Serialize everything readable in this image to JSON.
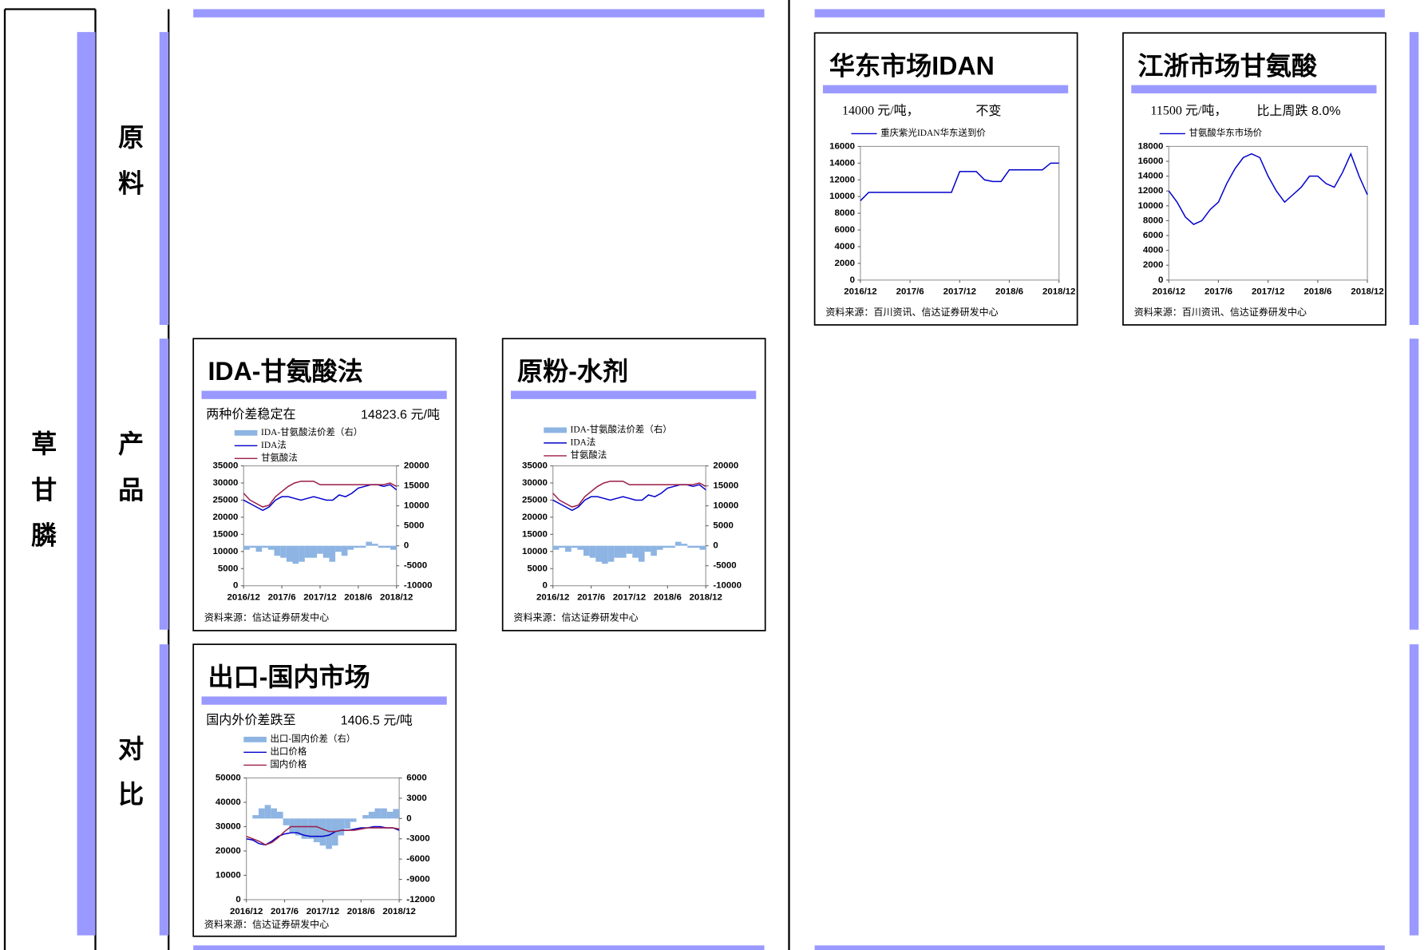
{
  "sidebar": {
    "main": "草甘膦",
    "rows": [
      "原料",
      "产品",
      "对比"
    ]
  },
  "chart_data": [
    {
      "type": "line",
      "title": "华东市场IDAN",
      "subtitle": [
        "14000 元/吨，",
        "不变"
      ],
      "x": [
        "2016/12",
        "2017/1",
        "2017/2",
        "2017/3",
        "2017/4",
        "2017/5",
        "2017/6",
        "2017/7",
        "2017/8",
        "2017/9",
        "2017/10",
        "2017/11",
        "2017/12",
        "2018/1",
        "2018/2",
        "2018/3",
        "2018/4",
        "2018/5",
        "2018/6",
        "2018/7",
        "2018/8",
        "2018/9",
        "2018/10",
        "2018/11",
        "2018/12"
      ],
      "xticks": [
        "2016/12",
        "2017/6",
        "2017/12",
        "2018/6",
        "2018/12"
      ],
      "ylim": [
        0,
        16000
      ],
      "yticks": [
        0,
        2000,
        4000,
        6000,
        8000,
        10000,
        12000,
        14000,
        16000
      ],
      "series": [
        {
          "name": "重庆紫光IDAN华东送到价",
          "color": "#0000cc",
          "values": [
            9500,
            10500,
            10500,
            10500,
            10500,
            10500,
            10500,
            10500,
            10500,
            10500,
            10500,
            10500,
            13000,
            13000,
            13000,
            12000,
            11800,
            11800,
            13200,
            13200,
            13200,
            13200,
            13200,
            14000,
            14000
          ]
        }
      ],
      "source": "资料来源：百川资讯、信达证券研发中心"
    },
    {
      "type": "line",
      "title": "江浙市场甘氨酸",
      "subtitle": [
        "11500 元/吨，",
        "比上周跌 8.0%"
      ],
      "x": [
        "2016/12",
        "2017/1",
        "2017/2",
        "2017/3",
        "2017/4",
        "2017/5",
        "2017/6",
        "2017/7",
        "2017/8",
        "2017/9",
        "2017/10",
        "2017/11",
        "2017/12",
        "2018/1",
        "2018/2",
        "2018/3",
        "2018/4",
        "2018/5",
        "2018/6",
        "2018/7",
        "2018/8",
        "2018/9",
        "2018/10",
        "2018/11",
        "2018/12"
      ],
      "xticks": [
        "2016/12",
        "2017/6",
        "2017/12",
        "2018/6",
        "2018/12"
      ],
      "ylim": [
        0,
        18000
      ],
      "yticks": [
        0,
        2000,
        4000,
        6000,
        8000,
        10000,
        12000,
        14000,
        16000,
        18000
      ],
      "series": [
        {
          "name": "甘氨酸华东市场价",
          "color": "#0000cc",
          "values": [
            12000,
            10500,
            8500,
            7500,
            8000,
            9500,
            10500,
            13000,
            15000,
            16500,
            17000,
            16500,
            14000,
            12000,
            10500,
            11500,
            12500,
            14000,
            14000,
            13000,
            12500,
            14500,
            17000,
            14000,
            11500
          ]
        }
      ],
      "source": "资料来源：百川资讯、信达证券研发中心"
    },
    {
      "type": "combo",
      "title": "IDA-甘氨酸法",
      "subtitle": [
        "两种价差稳定在",
        "14823.6 元/吨"
      ],
      "x": [
        "2016/12",
        "2017/1",
        "2017/2",
        "2017/3",
        "2017/4",
        "2017/5",
        "2017/6",
        "2017/7",
        "2017/8",
        "2017/9",
        "2017/10",
        "2017/11",
        "2017/12",
        "2018/1",
        "2018/2",
        "2018/3",
        "2018/4",
        "2018/5",
        "2018/6",
        "2018/7",
        "2018/8",
        "2018/9",
        "2018/10",
        "2018/11",
        "2018/12"
      ],
      "xticks": [
        "2016/12",
        "2017/6",
        "2017/12",
        "2018/6",
        "2018/12"
      ],
      "ylim": [
        0,
        35000
      ],
      "yticks": [
        0,
        5000,
        10000,
        15000,
        20000,
        25000,
        30000,
        35000
      ],
      "y2lim": [
        -10000,
        20000
      ],
      "y2ticks": [
        -10000,
        -5000,
        0,
        5000,
        10000,
        15000,
        20000
      ],
      "series": [
        {
          "name": "IDA-甘氨酸法价差（右）",
          "color": "#8db4e2",
          "type": "bar",
          "axis": "y2",
          "values": [
            -1000,
            -500,
            -1500,
            -500,
            -1000,
            -2500,
            -3000,
            -4000,
            -4500,
            -4000,
            -3000,
            -3000,
            -2000,
            -3000,
            -4000,
            -1500,
            -2500,
            -1000,
            -500,
            -500,
            1000,
            500,
            -500,
            -500,
            -1000
          ]
        },
        {
          "name": "IDA法",
          "color": "#0000cc",
          "values": [
            25000,
            24000,
            23000,
            22000,
            23000,
            25000,
            26000,
            26000,
            25500,
            25000,
            25500,
            26000,
            25500,
            25000,
            25000,
            26500,
            26000,
            27000,
            28500,
            29000,
            29500,
            29500,
            29000,
            29500,
            28000
          ]
        },
        {
          "name": "甘氨酸法",
          "color": "#9b1c45",
          "values": [
            27000,
            25000,
            24000,
            23000,
            23500,
            26000,
            27500,
            29000,
            30000,
            30500,
            30500,
            30500,
            29500,
            29500,
            29500,
            29500,
            29500,
            29500,
            29500,
            29500,
            29500,
            29500,
            29500,
            30000,
            29000
          ]
        }
      ],
      "source": "资料来源：信达证券研发中心"
    },
    {
      "type": "combo",
      "title": "原粉-水剂",
      "subtitle": [],
      "x": [
        "2016/12",
        "2017/1",
        "2017/2",
        "2017/3",
        "2017/4",
        "2017/5",
        "2017/6",
        "2017/7",
        "2017/8",
        "2017/9",
        "2017/10",
        "2017/11",
        "2017/12",
        "2018/1",
        "2018/2",
        "2018/3",
        "2018/4",
        "2018/5",
        "2018/6",
        "2018/7",
        "2018/8",
        "2018/9",
        "2018/10",
        "2018/11",
        "2018/12"
      ],
      "xticks": [
        "2016/12",
        "2017/6",
        "2017/12",
        "2018/6",
        "2018/12"
      ],
      "ylim": [
        0,
        35000
      ],
      "yticks": [
        0,
        5000,
        10000,
        15000,
        20000,
        25000,
        30000,
        35000
      ],
      "y2lim": [
        -10000,
        20000
      ],
      "y2ticks": [
        -10000,
        -5000,
        0,
        5000,
        10000,
        15000,
        20000
      ],
      "series": [
        {
          "name": "IDA-甘氨酸法价差（右）",
          "color": "#8db4e2",
          "type": "bar",
          "axis": "y2",
          "values": [
            -1000,
            -500,
            -1500,
            -500,
            -1000,
            -2500,
            -3000,
            -4000,
            -4500,
            -4000,
            -3000,
            -3000,
            -2000,
            -3000,
            -4000,
            -1500,
            -2500,
            -1000,
            -500,
            -500,
            1000,
            500,
            -500,
            -500,
            -1000
          ]
        },
        {
          "name": "IDA法",
          "color": "#0000cc",
          "values": [
            25000,
            24000,
            23000,
            22000,
            23000,
            25000,
            26000,
            26000,
            25500,
            25000,
            25500,
            26000,
            25500,
            25000,
            25000,
            26500,
            26000,
            27000,
            28500,
            29000,
            29500,
            29500,
            29000,
            29500,
            28000
          ]
        },
        {
          "name": "甘氨酸法",
          "color": "#9b1c45",
          "values": [
            27000,
            25000,
            24000,
            23000,
            23500,
            26000,
            27500,
            29000,
            30000,
            30500,
            30500,
            30500,
            29500,
            29500,
            29500,
            29500,
            29500,
            29500,
            29500,
            29500,
            29500,
            29500,
            29500,
            30000,
            29000
          ]
        }
      ],
      "source": "资料来源：信达证券研发中心"
    },
    {
      "type": "combo",
      "title": "出口-国内市场",
      "subtitle": [
        "国内外价差跌至",
        "1406.5 元/吨"
      ],
      "x": [
        "2016/12",
        "2017/1",
        "2017/2",
        "2017/3",
        "2017/4",
        "2017/5",
        "2017/6",
        "2017/7",
        "2017/8",
        "2017/9",
        "2017/10",
        "2017/11",
        "2017/12",
        "2018/1",
        "2018/2",
        "2018/3",
        "2018/4",
        "2018/5",
        "2018/6",
        "2018/7",
        "2018/8",
        "2018/9",
        "2018/10",
        "2018/11",
        "2018/12"
      ],
      "xticks": [
        "2016/12",
        "2017/6",
        "2017/12",
        "2018/6",
        "2018/12"
      ],
      "ylim": [
        0,
        50000
      ],
      "yticks": [
        0,
        10000,
        20000,
        30000,
        40000,
        50000
      ],
      "y2lim": [
        -12000,
        6000
      ],
      "y2ticks": [
        -12000,
        -9000,
        -6000,
        -3000,
        0,
        3000,
        6000
      ],
      "series": [
        {
          "name": "出口-国内价差（右）",
          "color": "#8db4e2",
          "type": "bar",
          "axis": "y2",
          "values": [
            0,
            500,
            1500,
            2000,
            1500,
            1000,
            -1000,
            -2000,
            -2500,
            -3000,
            -3000,
            -3500,
            -4000,
            -4500,
            -4000,
            -2500,
            -1500,
            -500,
            0,
            500,
            1000,
            1500,
            1500,
            1000,
            1406.5
          ]
        },
        {
          "name": "出口价格",
          "color": "#0000cc",
          "values": [
            25000,
            24500,
            23000,
            22500,
            24000,
            26000,
            27000,
            27500,
            27500,
            26500,
            26000,
            26000,
            26000,
            26500,
            28000,
            28500,
            28500,
            29000,
            29500,
            29500,
            30000,
            30000,
            29500,
            29500,
            28500
          ]
        },
        {
          "name": "国内价格",
          "color": "#9b1c45",
          "values": [
            26000,
            25000,
            24000,
            22500,
            23500,
            25500,
            28000,
            30000,
            30000,
            30000,
            30000,
            30000,
            29000,
            28000,
            28000,
            28500,
            28500,
            28500,
            29000,
            29500,
            29500,
            29500,
            29500,
            29500,
            29000
          ]
        }
      ],
      "source": "资料来源：信达证券研发中心"
    }
  ]
}
